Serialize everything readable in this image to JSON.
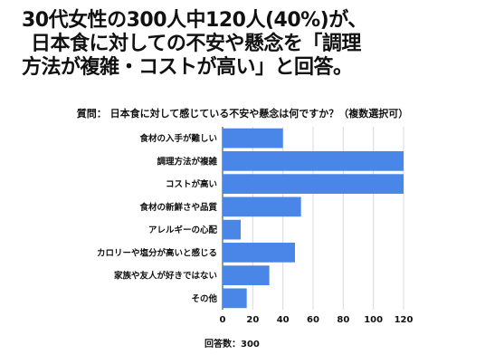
{
  "headline": {
    "line1": "30代女性の300人中120人(40%)が、",
    "line2": "日本食に対しての不安や懸念を「調理",
    "line3": "方法が複雑・コストが高い」と回答。"
  },
  "footer": "回答数：300",
  "chart_data": {
    "type": "bar",
    "orientation": "horizontal",
    "title": "質問： 日本食に対して感じている不安や懸念は何ですか？（複数選択可）",
    "categories": [
      "食材の入手が難しい",
      "調理方法が複雑",
      "コストが高い",
      "食材の新鮮さや品質",
      "アレルギーの心配",
      "カロリーや塩分が高いと感じる",
      "家族や友人が好きではない",
      "その他"
    ],
    "values": [
      40,
      120,
      120,
      52,
      12,
      48,
      31,
      16
    ],
    "x_ticks": [
      "0",
      "20",
      "40",
      "60",
      "80",
      "100",
      "120"
    ],
    "xlim": [
      0,
      120
    ],
    "grid": true,
    "bar_color": "#4a86e8"
  }
}
